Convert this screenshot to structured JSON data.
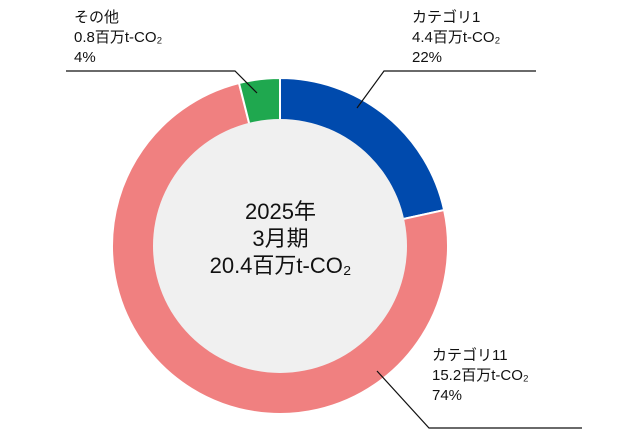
{
  "chart_data": {
    "type": "pie",
    "donut": true,
    "center_label": [
      "2025年",
      "3月期",
      "20.4百万t-CO₂"
    ],
    "slices": [
      {
        "name": "カテゴリ1",
        "value": 4.4,
        "value_label": "4.4百万t-CO₂",
        "percent_label": "22%",
        "color": "#004aad"
      },
      {
        "name": "カテゴリ11",
        "value": 15.2,
        "value_label": "15.2百万t-CO₂",
        "percent_label": "74%",
        "color": "#f08080"
      },
      {
        "name": "その他",
        "value": 0.8,
        "value_label": "0.8百万t-CO₂",
        "percent_label": "4%",
        "color": "#1fa84f"
      }
    ],
    "total": 20.4,
    "start": "12 o'clock",
    "direction": "clockwise",
    "inner_color": "#f0f0f0"
  }
}
